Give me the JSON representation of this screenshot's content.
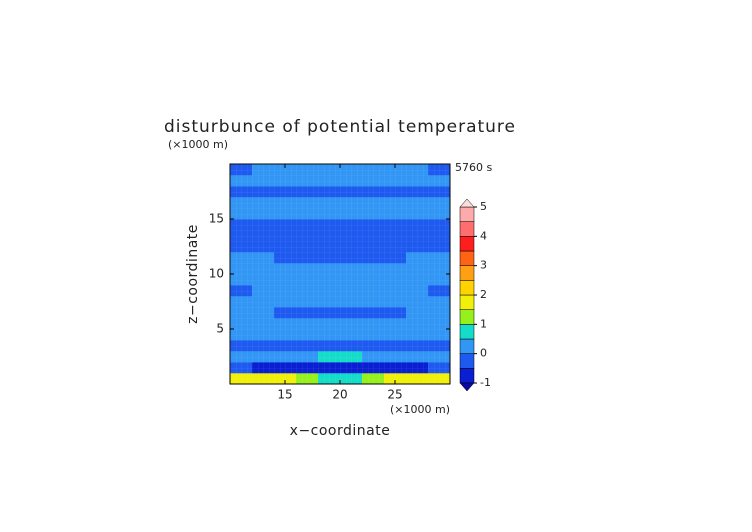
{
  "chart_data": {
    "type": "heatmap",
    "title": "disturbunce of potential temperature",
    "time_label": "5760 s",
    "x_label": "x−coordinate",
    "y_label": "z−coordinate",
    "x_unit": "(×1000 m)",
    "y_unit": "(×1000 m)",
    "xlim": [
      10,
      30
    ],
    "ylim": [
      0,
      20
    ],
    "xticks": [
      15,
      20,
      25
    ],
    "yticks": [
      5,
      10,
      15
    ],
    "x": [
      10,
      12,
      14,
      16,
      18,
      20,
      22,
      24,
      26,
      28,
      30
    ],
    "y": [
      0,
      1,
      2,
      3,
      4,
      5,
      6,
      7,
      8,
      9,
      10,
      11,
      12,
      13,
      14,
      15,
      16,
      17,
      18,
      19,
      20
    ],
    "z": [
      [
        1.75,
        1.75,
        1.75,
        1.25,
        0.75,
        0.75,
        1.25,
        1.75,
        1.75,
        1.75
      ],
      [
        -0.25,
        -0.75,
        -0.75,
        -0.75,
        -0.75,
        -0.75,
        -0.75,
        -0.75,
        -0.75,
        -0.25
      ],
      [
        0.25,
        0.25,
        0.25,
        0.25,
        0.75,
        0.75,
        0.25,
        0.25,
        0.25,
        0.25
      ],
      [
        -0.25,
        -0.25,
        -0.25,
        -0.25,
        -0.25,
        -0.25,
        -0.25,
        -0.25,
        -0.25,
        -0.25
      ],
      [
        0.25,
        0.25,
        0.25,
        0.25,
        0.25,
        0.25,
        0.25,
        0.25,
        0.25,
        0.25
      ],
      [
        0.25,
        0.25,
        0.25,
        0.25,
        0.25,
        0.25,
        0.25,
        0.25,
        0.25,
        0.25
      ],
      [
        0.25,
        0.25,
        -0.25,
        -0.25,
        -0.25,
        -0.25,
        -0.25,
        -0.25,
        0.25,
        0.25
      ],
      [
        0.25,
        0.25,
        0.25,
        0.25,
        0.25,
        0.25,
        0.25,
        0.25,
        0.25,
        0.25
      ],
      [
        -0.25,
        0.25,
        0.25,
        0.25,
        0.25,
        0.25,
        0.25,
        0.25,
        0.25,
        -0.25
      ],
      [
        0.25,
        0.25,
        0.25,
        0.25,
        0.25,
        0.25,
        0.25,
        0.25,
        0.25,
        0.25
      ],
      [
        0.25,
        0.25,
        0.25,
        0.25,
        0.25,
        0.25,
        0.25,
        0.25,
        0.25,
        0.25
      ],
      [
        0.25,
        0.25,
        -0.25,
        -0.25,
        -0.25,
        -0.25,
        -0.25,
        -0.25,
        0.25,
        0.25
      ],
      [
        -0.25,
        -0.25,
        -0.25,
        -0.25,
        -0.25,
        -0.25,
        -0.25,
        -0.25,
        -0.25,
        -0.25
      ],
      [
        -0.25,
        -0.25,
        -0.25,
        -0.25,
        -0.25,
        -0.25,
        -0.25,
        -0.25,
        -0.25,
        -0.25
      ],
      [
        -0.25,
        -0.25,
        -0.25,
        -0.25,
        -0.25,
        -0.25,
        -0.25,
        -0.25,
        -0.25,
        -0.25
      ],
      [
        0.25,
        0.25,
        0.25,
        0.25,
        0.25,
        0.25,
        0.25,
        0.25,
        0.25,
        0.25
      ],
      [
        0.25,
        0.25,
        0.25,
        0.25,
        0.25,
        0.25,
        0.25,
        0.25,
        0.25,
        0.25
      ],
      [
        -0.25,
        -0.25,
        -0.25,
        -0.25,
        -0.25,
        -0.25,
        -0.25,
        -0.25,
        -0.25,
        -0.25
      ],
      [
        0.25,
        0.25,
        0.25,
        0.25,
        0.25,
        0.25,
        0.25,
        0.25,
        0.25,
        0.25
      ],
      [
        -0.25,
        0.25,
        0.25,
        0.25,
        0.25,
        0.25,
        0.25,
        0.25,
        0.25,
        -0.25
      ]
    ],
    "levels": [
      -1,
      -0.5,
      0,
      0.5,
      1,
      1.5,
      2,
      2.5,
      3,
      3.5,
      4,
      4.5,
      5
    ],
    "colors": [
      "#0a1ed2",
      "#1e5af0",
      "#3296f5",
      "#14dcc8",
      "#96f01e",
      "#f0f00a",
      "#ffd200",
      "#ffa014",
      "#ff6414",
      "#ff1e1e",
      "#ff6e6e",
      "#ffaaaa"
    ],
    "under_color": "#0a0aa0",
    "over_color": "#ffdcdc",
    "colorbar_ticks": [
      -1,
      0,
      1,
      2,
      3,
      4,
      5
    ]
  }
}
